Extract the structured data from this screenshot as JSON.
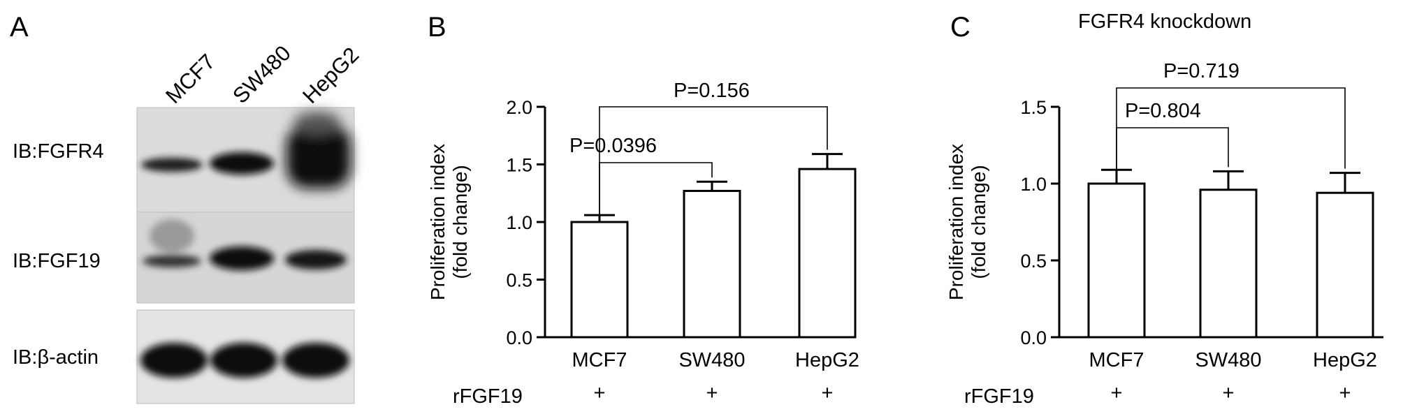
{
  "panel_a": {
    "letter": "A",
    "lanes": [
      "MCF7",
      "SW480",
      "HepG2"
    ],
    "blots": [
      {
        "label": "IB:FGFR4"
      },
      {
        "label": "IB:FGF19"
      },
      {
        "label": "IB:β-actin"
      }
    ]
  },
  "panel_b": {
    "letter": "B",
    "title": "",
    "ylabel_line1": "Proliferation index",
    "ylabel_line2": "(fold change)",
    "treatment_label": "rFGF19",
    "treatment_marks": [
      "+",
      "+",
      "+"
    ],
    "pvalues": [
      {
        "label": "P=0.0396",
        "from": 0,
        "to": 1
      },
      {
        "label": "P=0.156",
        "from": 0,
        "to": 2
      }
    ]
  },
  "panel_c": {
    "letter": "C",
    "title": "FGFR4 knockdown",
    "ylabel_line1": "Proliferation index",
    "ylabel_line2": "(fold change)",
    "treatment_label": "rFGF19",
    "treatment_marks": [
      "+",
      "+",
      "+"
    ],
    "pvalues": [
      {
        "label": "P=0.804",
        "from": 0,
        "to": 1
      },
      {
        "label": "P=0.719",
        "from": 0,
        "to": 2
      }
    ]
  },
  "chart_data": [
    {
      "type": "bar",
      "panel": "B",
      "title": "",
      "xlabel": "",
      "ylabel": "Proliferation index (fold change)",
      "categories": [
        "MCF7",
        "SW480",
        "HepG2"
      ],
      "values": [
        1.0,
        1.27,
        1.46
      ],
      "errors": [
        0.06,
        0.08,
        0.13
      ],
      "ylim": [
        0,
        2.0
      ],
      "yticks": [
        0.0,
        0.5,
        1.0,
        1.5,
        2.0
      ],
      "ytick_labels": [
        "0.0",
        "0.5",
        "1.0",
        "1.5",
        "2.0"
      ],
      "grid": false,
      "annotations": [
        "P=0.0396",
        "P=0.156"
      ]
    },
    {
      "type": "bar",
      "panel": "C",
      "title": "FGFR4 knockdown",
      "xlabel": "",
      "ylabel": "Proliferation index (fold change)",
      "categories": [
        "MCF7",
        "SW480",
        "HepG2"
      ],
      "values": [
        1.0,
        0.96,
        0.94
      ],
      "errors": [
        0.09,
        0.12,
        0.13
      ],
      "ylim": [
        0,
        1.5
      ],
      "yticks": [
        0.0,
        0.5,
        1.0,
        1.5
      ],
      "ytick_labels": [
        "0.0",
        "0.5",
        "1.0",
        "1.5"
      ],
      "grid": false,
      "annotations": [
        "P=0.804",
        "P=0.719"
      ]
    }
  ]
}
